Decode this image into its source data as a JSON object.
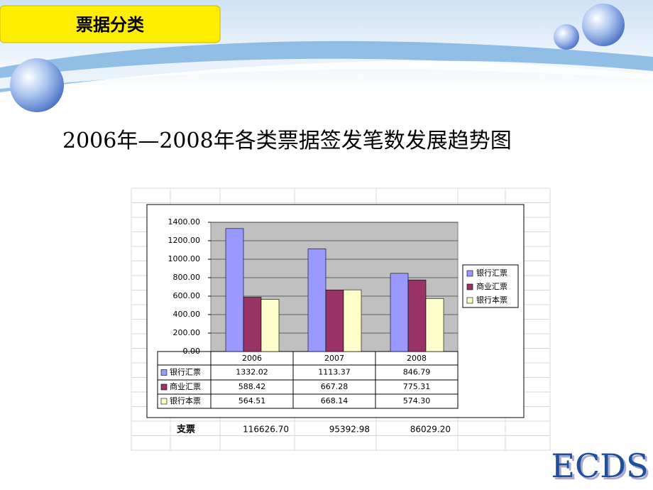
{
  "header": {
    "title": "票据分类"
  },
  "chart_data": {
    "type": "bar",
    "title": "2006年—2008年各类票据签发笔数发展趋势图",
    "categories": [
      "2006",
      "2007",
      "2008"
    ],
    "series": [
      {
        "name": "银行汇票",
        "color": "#9999ff",
        "values": [
          1332.02,
          1113.37,
          846.79
        ],
        "value_labels": [
          "1332.02",
          "1113.37",
          "846.79"
        ]
      },
      {
        "name": "商业汇票",
        "color": "#993366",
        "values": [
          588.42,
          667.28,
          775.31
        ],
        "value_labels": [
          "588.42",
          "667.28",
          "775.31"
        ]
      },
      {
        "name": "银行本票",
        "color": "#ffffcc",
        "values": [
          564.51,
          668.14,
          574.3
        ],
        "value_labels": [
          "564.51",
          "668.14",
          "574.30"
        ]
      }
    ],
    "ylim": [
      0,
      1400
    ],
    "yticks": [
      {
        "value": 0,
        "label": "0.00"
      },
      {
        "value": 200,
        "label": "200.00"
      },
      {
        "value": 400,
        "label": "400.00"
      },
      {
        "value": 600,
        "label": "600.00"
      },
      {
        "value": 800,
        "label": "800.00"
      },
      {
        "value": 1000,
        "label": "1000.00"
      },
      {
        "value": 1200,
        "label": "1200.00"
      },
      {
        "value": 1400,
        "label": "1400.00"
      }
    ],
    "grid": true,
    "legend": "right"
  },
  "cheque_row": {
    "label": "支票",
    "cells": [
      "116626.70",
      "95392.98",
      "86029.20"
    ]
  },
  "footer": {
    "logo": "ECDS"
  }
}
